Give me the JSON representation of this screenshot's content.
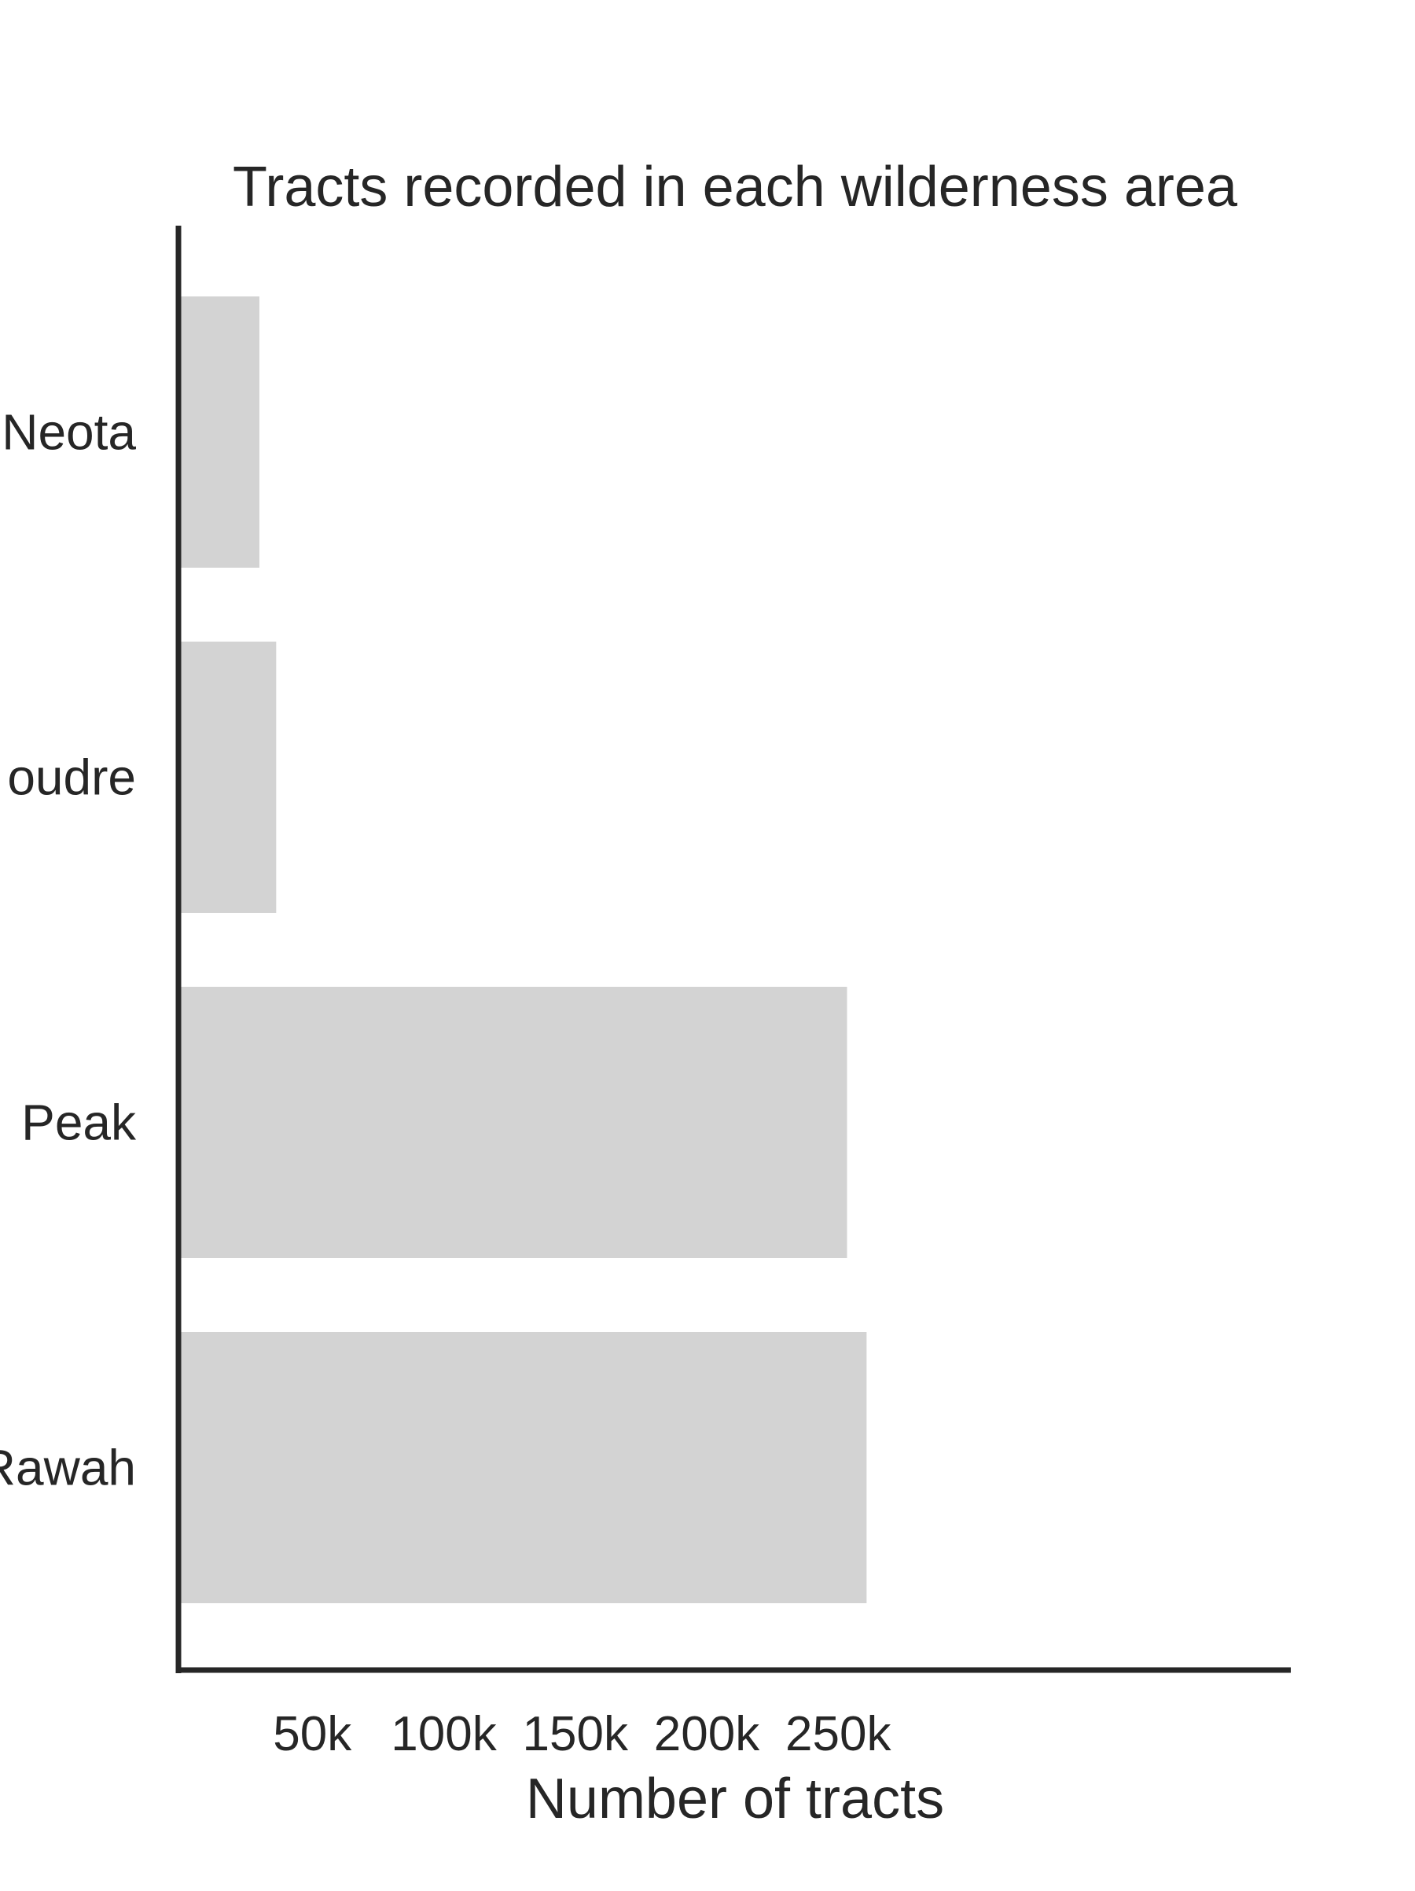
{
  "chart_data": {
    "type": "bar",
    "orientation": "horizontal",
    "title": "Tracts recorded in each wilderness area",
    "xlabel": "Number of tracts",
    "ylabel": "",
    "categories": [
      "Neota",
      "oudre",
      "Peak",
      "Rawah"
    ],
    "values": [
      29884,
      36267,
      253364,
      260796
    ],
    "xlim": [
      0,
      275000
    ],
    "xticks": [
      50000,
      100000,
      150000,
      200000,
      250000
    ],
    "xtick_labels": [
      "50k",
      "100k",
      "150k",
      "200k",
      "250k"
    ],
    "grid": false,
    "legend": "none",
    "bar_color": "#d3d3d3",
    "axis_color": "#262626"
  }
}
